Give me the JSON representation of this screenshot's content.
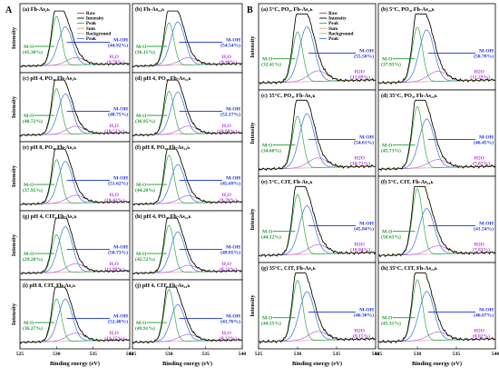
{
  "colors": {
    "raw": "#c0392b",
    "intensity": "#000000",
    "peak_mo": "#2ea84a",
    "peak_moh": "#3a6fd8",
    "peak_h2o": "#c060e0",
    "sum": "#d4a64a",
    "background": "#d9a0a0",
    "arrow_mo": "#1a9a2a",
    "arrow_moh": "#1a2fd8",
    "arrow_h2o": "#b03ad8"
  },
  "chart_data": [
    {
      "group": "A",
      "type": "line",
      "xlabel": "Binding energy (eV)",
      "ylabel": "Intensity",
      "xlim": [
        525,
        540
      ],
      "xticks": [
        "525",
        "530",
        "535",
        "540"
      ],
      "legend": [
        "Raw",
        "Intensity",
        "Peak",
        "Sum",
        "Background",
        "Peak"
      ],
      "legend_panel": 0,
      "panels": [
        {
          "label": "(a) Fh-As₂ₕ",
          "mo": "45.30%",
          "moh": "44.92%",
          "h2o": "9.79%"
        },
        {
          "label": "(b) Fh-As₂₄ₕ",
          "mo": "36.15%",
          "moh": "54.54%",
          "h2o": "9.49%"
        },
        {
          "label": "(c) pH 4, PO₄, Fh-As₂ₕ",
          "mo": "40.72%",
          "moh": "48.75%",
          "h2o": "10.53%"
        },
        {
          "label": "(d) pH 4, PO₄, Fh-As₂₄ₕ",
          "mo": "36.95%",
          "moh": "52.17%",
          "h2o": "10.88%"
        },
        {
          "label": "(e) pH 8, PO₄, Fh-As₂ₕ",
          "mo": "37.95%",
          "moh": "51.62%",
          "h2o": "10.43%"
        },
        {
          "label": "(f) pH 8, PO₄, Fh-As₂₄ₕ",
          "mo": "44.28%",
          "moh": "45.69%",
          "h2o": "9.79%"
        },
        {
          "label": "(g) pH 4, CIT, Fh-As₂ₕ",
          "mo": "29.28%",
          "moh": "58.73%",
          "h2o": "11.99%"
        },
        {
          "label": "(h) pH 4, PO₄, Fh-As₂₄ₕ",
          "mo": "42.72%",
          "moh": "49.05%",
          "h2o": "8.23%"
        },
        {
          "label": "(i) pH 8, CIT, Fh-As₂ₕ",
          "mo": "36.27%",
          "moh": "52.48%",
          "h2o": "11.25%"
        },
        {
          "label": "(j) pH 4, CIT, Fh-As₂₄ₕ",
          "mo": "49.91%",
          "moh": "41.76%",
          "h2o": "8.32%"
        }
      ]
    },
    {
      "group": "B",
      "type": "line",
      "xlabel": "Binding energy (eV)",
      "ylabel": "Intensity",
      "xlim": [
        525,
        540
      ],
      "xticks": [
        "525",
        "530",
        "535",
        "540"
      ],
      "legend": [
        "Raw",
        "Intensity",
        "Peak",
        "Sum",
        "Background",
        "Peak"
      ],
      "legend_panel": 0,
      "panels": [
        {
          "label": "(a) 5°C, PO₄, Fh-As₂ₕ",
          "mo": "32.41%",
          "moh": "55.50%",
          "h2o": "12.09%"
        },
        {
          "label": "(b) 5°C, PO₄, Fh-As₂₄ₕ",
          "mo": "37.93%",
          "moh": "50.78%",
          "h2o": "11.29%"
        },
        {
          "label": "(c) 35°C, PO₄, Fh-As₂ₕ",
          "mo": "34.68%",
          "moh": "54.61%",
          "h2o": "10.71%"
        },
        {
          "label": "(d) 35°C, PO₄, Fh-As₂₄ₕ",
          "mo": "45.73%",
          "moh": "46.45%",
          "h2o": "7.82%"
        },
        {
          "label": "(e) 5°C, CIT, Fh-As₂ₕ",
          "mo": "44.12%",
          "moh": "45.84%",
          "h2o": "10.04%"
        },
        {
          "label": "(f) 5°C, CIT, Fh-As₂₄ₕ",
          "mo": "50.63%",
          "moh": "41.54%",
          "h2o": "7.83%"
        },
        {
          "label": "(g) 35°C, CIT, Fh-As₂ₕ",
          "mo": "44.55%",
          "moh": "46.30%",
          "h2o": "9.15%"
        },
        {
          "label": "(h) 35°C, CIT, Fh-As₂₄ₕ",
          "mo": "45.31%",
          "moh": "46.67%",
          "h2o": "8.02%"
        }
      ]
    }
  ],
  "text": {
    "group_a": "A",
    "group_b": "B",
    "mo_prefix": "M-O",
    "moh_prefix": "M-OH",
    "h2o_prefix_a": "H₂O",
    "h2o_prefix_b": "H2O"
  }
}
